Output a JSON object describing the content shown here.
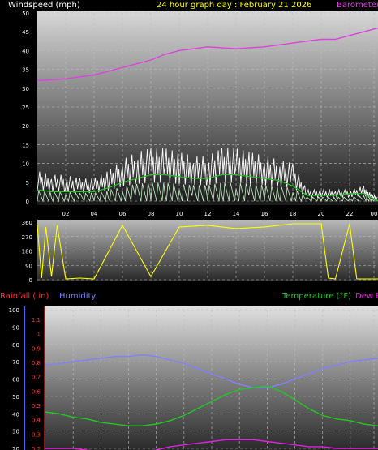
{
  "header": {
    "windspeed_label": "Windspeed (mph)",
    "title": "24 hour graph day : February 21 2026",
    "barometer_label": "Barometer"
  },
  "colors": {
    "background": "#000000",
    "axis_text": "#ffffff",
    "title_text": "#ffff00",
    "barometer": "#e040e0",
    "gust": "#ffffff",
    "wind_avg": "#22c822",
    "wind_min": "#c8f0c8",
    "direction": "#ffff00",
    "rain": "#ff3030",
    "humidity": "#8080ff",
    "temperature": "#22c822",
    "dewpoint": "#e020e0"
  },
  "chart_data": [
    {
      "type": "line",
      "name": "wind-barometer",
      "x_ticks": [
        "02",
        "04",
        "06",
        "08",
        "10",
        "12",
        "14",
        "16",
        "18",
        "20",
        "22",
        "00"
      ],
      "xlim": [
        0,
        24
      ],
      "ylim": [
        0,
        50
      ],
      "y_ticks": [
        0,
        5,
        10,
        15,
        20,
        25,
        30,
        35,
        40,
        45,
        50
      ],
      "grid": true,
      "series": [
        {
          "name": "Barometer",
          "x": [
            0,
            2,
            4,
            6,
            8,
            9,
            10,
            12,
            14,
            16,
            18,
            20,
            21,
            22,
            23,
            24
          ],
          "values": [
            32,
            32.5,
            33.5,
            35.5,
            37.5,
            39,
            40,
            41,
            40.5,
            41,
            42,
            43,
            43,
            44,
            45,
            46
          ]
        },
        {
          "name": "Gust",
          "x": [
            0,
            1,
            2,
            3,
            4,
            5,
            6,
            7,
            8,
            9,
            10,
            11,
            12,
            13,
            14,
            15,
            16,
            17,
            18,
            19,
            20,
            21,
            22,
            23,
            23.5,
            24
          ],
          "values": [
            8,
            7,
            7,
            6,
            6,
            8,
            11,
            13,
            14,
            14,
            13,
            12,
            12,
            14,
            14,
            13,
            12,
            11,
            10,
            3,
            3,
            3,
            3,
            4,
            2,
            1
          ]
        },
        {
          "name": "Average",
          "x": [
            0,
            1,
            2,
            3,
            4,
            5,
            6,
            7,
            8,
            9,
            10,
            11,
            12,
            13,
            14,
            15,
            16,
            17,
            18,
            19,
            20,
            21,
            22,
            23,
            23.5,
            24
          ],
          "values": [
            3,
            2.5,
            2.5,
            2.5,
            2.5,
            3.5,
            5,
            6,
            7,
            7,
            6.5,
            6,
            6,
            7,
            7,
            6.5,
            6,
            5.5,
            4,
            1.5,
            1.5,
            1.5,
            2,
            2,
            1,
            0
          ]
        }
      ]
    },
    {
      "type": "line",
      "name": "wind-direction",
      "xlim": [
        0,
        24
      ],
      "ylim": [
        0,
        360
      ],
      "y_ticks": [
        0,
        90,
        180,
        270,
        360
      ],
      "grid": true,
      "series": [
        {
          "name": "Direction",
          "x": [
            0,
            0.3,
            0.6,
            1,
            1.4,
            2,
            3,
            4,
            6,
            8,
            10,
            12,
            14,
            16,
            18,
            19,
            20,
            20.5,
            21,
            22,
            22.5,
            23,
            24
          ],
          "values": [
            340,
            10,
            330,
            20,
            340,
            5,
            10,
            5,
            340,
            20,
            330,
            340,
            320,
            330,
            350,
            350,
            350,
            10,
            5,
            350,
            5,
            5,
            5
          ]
        }
      ]
    },
    {
      "type": "line",
      "name": "rain-humidity-temperature",
      "header": {
        "rain_label": "Rainfall (.in)",
        "humidity_label": "Humidity",
        "temperature_label": "Temperature (°F)",
        "dew_label": "Dew P"
      },
      "left_ticks": [
        20,
        30,
        40,
        50,
        60,
        70,
        80,
        90,
        100
      ],
      "rain_ticks": [
        "0.2",
        "0.3",
        "0.4",
        "0.5",
        "0.6",
        "0.7",
        "0.8",
        "0.9",
        "1",
        "1.1"
      ],
      "xlim": [
        0,
        24
      ],
      "ylim": [
        20,
        100
      ],
      "grid": true,
      "series": [
        {
          "name": "Humidity",
          "x": [
            0,
            1,
            2,
            3,
            4,
            5,
            6,
            7,
            8,
            9,
            10,
            11,
            12,
            13,
            14,
            15,
            16,
            17,
            18,
            19,
            20,
            21,
            22,
            23,
            24
          ],
          "values": [
            68,
            69,
            70,
            71,
            72,
            73,
            73,
            74,
            73,
            71,
            69,
            66,
            63,
            60,
            57,
            55,
            55,
            57,
            60,
            63,
            66,
            68,
            70,
            71,
            72
          ]
        },
        {
          "name": "Temperature",
          "x": [
            0,
            1,
            2,
            3,
            4,
            5,
            6,
            7,
            8,
            9,
            10,
            11,
            12,
            13,
            14,
            15,
            16,
            17,
            18,
            19,
            20,
            21,
            22,
            23,
            24
          ],
          "values": [
            41,
            40,
            38,
            37,
            35,
            34,
            33,
            33,
            34,
            36,
            39,
            43,
            47,
            51,
            54,
            55,
            56,
            53,
            48,
            43,
            39,
            37,
            36,
            34,
            33
          ]
        },
        {
          "name": "Dew Point",
          "x": [
            0,
            1,
            2,
            3,
            4,
            5,
            6,
            7,
            8,
            9,
            10,
            11,
            12,
            13,
            14,
            15,
            16,
            17,
            18,
            19,
            20,
            21,
            22,
            23,
            24
          ],
          "values": [
            20,
            20,
            20,
            19,
            18,
            18,
            18,
            18,
            19,
            21,
            22,
            23,
            24,
            25,
            25,
            25,
            24,
            23,
            22,
            21,
            21,
            20,
            20,
            20,
            20
          ]
        }
      ]
    }
  ]
}
